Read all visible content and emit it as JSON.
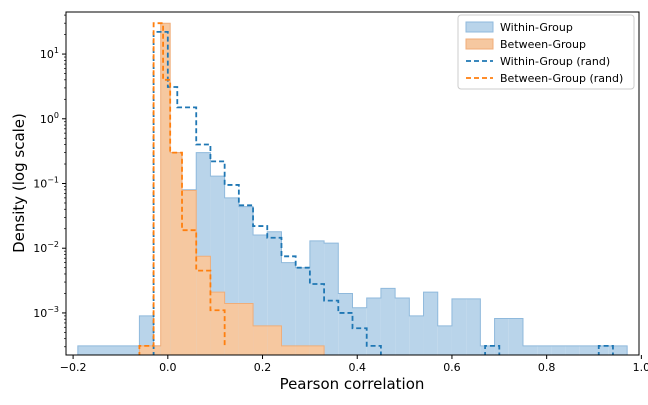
{
  "chart_data": {
    "type": "histogram",
    "title": "",
    "xlabel": "Pearson correlation",
    "ylabel": "Density (log scale)",
    "xlim": [
      -0.215,
      0.995
    ],
    "ylim_log10": [
      -3.65,
      1.65
    ],
    "yscale": "log",
    "x_ticks": [
      -0.2,
      0.0,
      0.2,
      0.4,
      0.6,
      0.8,
      1.0
    ],
    "x_tick_labels": [
      "−0.2",
      "0.0",
      "0.2",
      "0.4",
      "0.6",
      "0.8",
      "1.0"
    ],
    "y_ticks_log10": [
      -3,
      -2,
      -1,
      0,
      1
    ],
    "y_tick_labels": [
      {
        "base": "10",
        "exp": "−3"
      },
      {
        "base": "10",
        "exp": "−2"
      },
      {
        "base": "10",
        "exp": "−1"
      },
      {
        "base": "10",
        "exp": "0"
      },
      {
        "base": "10",
        "exp": "1"
      }
    ],
    "legend_position": "top-right",
    "series": [
      {
        "name": "Within-Group",
        "style": "filled",
        "color": "#1f77b4",
        "fill": "#b9d4ea",
        "edges": [
          -0.19,
          -0.06,
          -0.03,
          0.0,
          0.03,
          0.06,
          0.09,
          0.12,
          0.15,
          0.18,
          0.21,
          0.24,
          0.27,
          0.3,
          0.33,
          0.36,
          0.39,
          0.42,
          0.45,
          0.48,
          0.51,
          0.54,
          0.57,
          0.6,
          0.63,
          0.66,
          0.69,
          0.72,
          0.75,
          0.78,
          0.81,
          0.84,
          0.87,
          0.9,
          0.93,
          0.97
        ],
        "values": [
          0.00031,
          0.0009,
          0.00031,
          0.3,
          0.08,
          0.3,
          0.13,
          0.06,
          0.044,
          0.016,
          0.018,
          0.006,
          0.005,
          0.013,
          0.012,
          0.002,
          0.0012,
          0.0017,
          0.0024,
          0.0017,
          0.0009,
          0.0021,
          0.00063,
          0.00165,
          0.00165,
          0.00031,
          0.00082,
          0.00082,
          0.00031,
          0.00031,
          0.00031,
          0.00031,
          0.00031,
          0.00031,
          0.00031
        ]
      },
      {
        "name": "Between-Group",
        "style": "filled",
        "color": "#ff7f0e",
        "fill": "#f6c8a0",
        "edges": [
          -0.06,
          -0.03,
          -0.015,
          0.005,
          0.03,
          0.06,
          0.09,
          0.12,
          0.15,
          0.18,
          0.21,
          0.24,
          0.27,
          0.3,
          0.33
        ],
        "values": [
          0.00031,
          0.00031,
          30.0,
          0.3,
          0.078,
          0.0075,
          0.0021,
          0.0014,
          0.0014,
          0.00063,
          0.00063,
          0.00031,
          0.00031,
          0.00031
        ]
      },
      {
        "name": "Within-Group (rand)",
        "style": "dashed",
        "color": "#1f77b4",
        "edges": [
          -0.03,
          0.0,
          0.02,
          0.06,
          0.09,
          0.12,
          0.15,
          0.18,
          0.21,
          0.24,
          0.27,
          0.3,
          0.33,
          0.36,
          0.39,
          0.42,
          0.45
        ],
        "values": [
          22.0,
          3.1,
          1.5,
          0.4,
          0.22,
          0.095,
          0.046,
          0.022,
          0.0145,
          0.0075,
          0.005,
          0.0028,
          0.00155,
          0.001,
          0.00058,
          0.00031
        ],
        "extra_segments": [
          {
            "edges": [
              0.67,
              0.7
            ],
            "value": 0.00031
          },
          {
            "edges": [
              0.91,
              0.94
            ],
            "value": 0.00031
          }
        ]
      },
      {
        "name": "Between-Group (rand)",
        "style": "dashed",
        "color": "#ff7f0e",
        "edges": [
          -0.06,
          -0.03,
          -0.01,
          0.005,
          0.03,
          0.06,
          0.09,
          0.12
        ],
        "values": [
          0.00031,
          30.0,
          4.0,
          0.3,
          0.019,
          0.0045,
          0.0011,
          0.00031
        ]
      }
    ]
  }
}
